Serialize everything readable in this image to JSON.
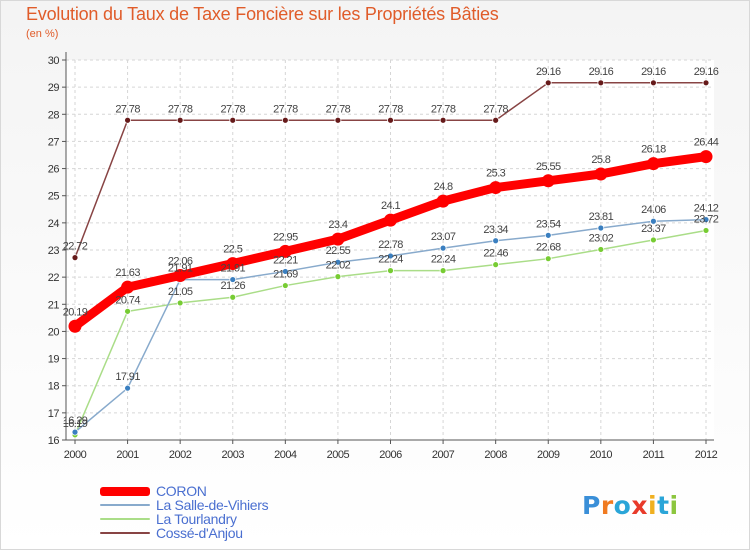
{
  "title": "Evolution du Taux de Taxe Foncière sur les Propriétés Bâties",
  "unit_label": "(en %)",
  "logo": {
    "text": "Proxiti",
    "letter_colors": [
      "#3a8fd8",
      "#f07a20",
      "#2aa5d8",
      "#e83a2a",
      "#f0b020",
      "#2aa5d8",
      "#8cc63e"
    ]
  },
  "chart_data": {
    "type": "line",
    "title": "Evolution du Taux de Taxe Foncière sur les Propriétés Bâties",
    "ylabel": "(en %)",
    "xlabel": "",
    "ylim": [
      16,
      30
    ],
    "yticks": [
      16,
      17,
      18,
      19,
      20,
      21,
      22,
      23,
      24,
      25,
      26,
      27,
      28,
      29,
      30
    ],
    "x": [
      "2000",
      "2001",
      "2002",
      "2003",
      "2004",
      "2005",
      "2006",
      "2007",
      "2008",
      "2009",
      "2010",
      "2011",
      "2012"
    ],
    "series": [
      {
        "name": "CORON",
        "color": "#ff0000",
        "marker_color": "#ff0000",
        "values": [
          20.19,
          21.63,
          22.06,
          22.5,
          22.95,
          23.4,
          24.1,
          24.8,
          25.3,
          25.55,
          25.8,
          26.18,
          26.44
        ],
        "labels": [
          "20.19",
          "21.63",
          "22.06",
          "22.5",
          "22.95",
          "23.4",
          "24.1",
          "24.8",
          "25.3",
          "25.55",
          "25.8",
          "26.18",
          "26.44"
        ]
      },
      {
        "name": "La Salle-de-Vihiers",
        "color": "#88aacc",
        "marker_color": "#3a7fc0",
        "values": [
          16.29,
          17.91,
          21.91,
          21.91,
          22.21,
          22.55,
          22.78,
          23.07,
          23.34,
          23.54,
          23.81,
          24.06,
          24.12
        ],
        "labels": [
          "16.29",
          "17.91",
          "21.91",
          "21.91",
          "22.21",
          "22.55",
          "22.78",
          "23.07",
          "23.34",
          "23.54",
          "23.81",
          "24.06",
          "24.12"
        ]
      },
      {
        "name": "La Tourlandry",
        "color": "#aadd88",
        "marker_color": "#77cc33",
        "values": [
          16.19,
          20.74,
          21.05,
          21.26,
          21.69,
          22.02,
          22.24,
          22.24,
          22.46,
          22.68,
          23.02,
          23.37,
          23.72
        ],
        "labels": [
          "16.19",
          "20.74",
          "21.05",
          "21.26",
          "21.69",
          "22.02",
          "22.24",
          "22.24",
          "22.46",
          "22.68",
          "23.02",
          "23.37",
          "23.72"
        ]
      },
      {
        "name": "Cossé-d'Anjou",
        "color": "#884444",
        "marker_color": "#661a1a",
        "values": [
          22.72,
          27.78,
          27.78,
          27.78,
          27.78,
          27.78,
          27.78,
          27.78,
          27.78,
          29.16,
          29.16,
          29.16,
          29.16
        ],
        "labels": [
          "22.72",
          "27.78",
          "27.78",
          "27.78",
          "27.78",
          "27.78",
          "27.78",
          "27.78",
          "27.78",
          "29.16",
          "29.16",
          "29.16",
          "29.16"
        ]
      }
    ]
  }
}
